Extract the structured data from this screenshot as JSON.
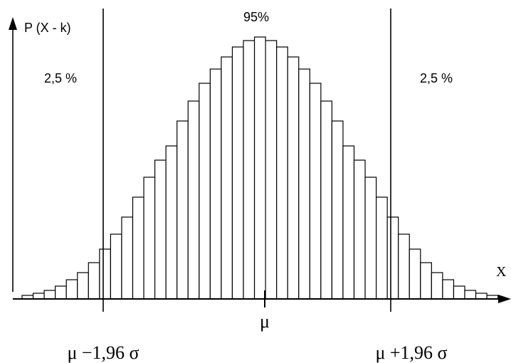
{
  "chart_data": {
    "type": "bar",
    "ylabel": "P (X - k)",
    "xlabel": "X",
    "annotations": {
      "left_tail": "2,5 %",
      "center": "95%",
      "right_tail": "2,5 %"
    },
    "markers": {
      "mean": "μ",
      "lower": "μ −1,96 σ",
      "upper": "μ +1,96 σ"
    },
    "values": [
      5,
      8,
      12,
      18,
      27,
      37,
      51,
      70,
      91,
      115,
      143,
      171,
      195,
      215,
      250,
      278,
      303,
      323,
      340,
      354,
      363,
      368,
      363,
      354,
      340,
      323,
      303,
      278,
      250,
      215,
      195,
      171,
      143,
      115,
      91,
      70,
      51,
      37,
      27,
      18,
      12,
      8,
      5
    ],
    "ylim": [
      0,
      400
    ]
  }
}
